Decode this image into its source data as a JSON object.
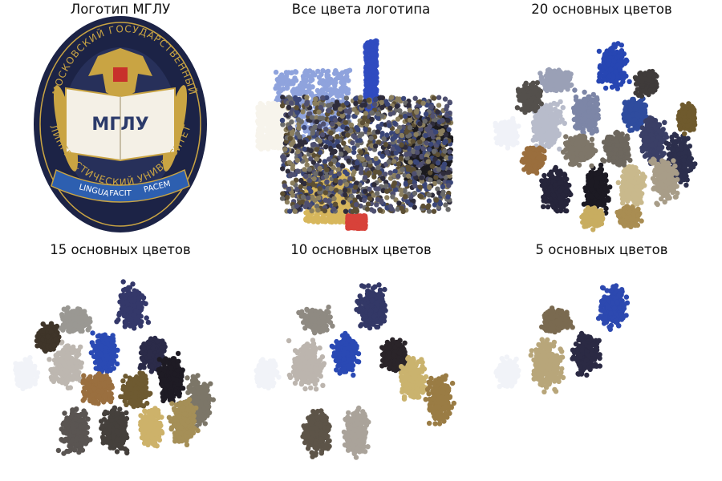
{
  "panels": [
    {
      "title": "Логотип МГЛУ",
      "kind": "logo"
    },
    {
      "title": "Все цвета логотипа",
      "kind": "scatter",
      "clusters": 0
    },
    {
      "title": "20 основных цветов",
      "kind": "scatter",
      "clusters": 20
    },
    {
      "title": "15 основных цветов",
      "kind": "scatter",
      "clusters": 15
    },
    {
      "title": "10 основных цветов",
      "kind": "scatter",
      "clusters": 10
    },
    {
      "title": "5 основных цветов",
      "kind": "scatter",
      "clusters": 5
    }
  ],
  "logo": {
    "arc_top": "МОСКОВСКИЙ ГОСУДАРСТВЕННЫЙ",
    "arc_bottom": "ЛИНГВИСТИЧЕСКИЙ УНИВЕРСИТЕТ",
    "book_text": "МГЛУ",
    "ribbon": [
      "LINGUA",
      "FACIT",
      "PACEM"
    ],
    "colors": {
      "navy": "#1c2346",
      "gold": "#c9a443",
      "ribbon": "#2d5fb0",
      "book": "#f4f0e6",
      "shield": "#c8312b"
    }
  },
  "chart_data": [
    {
      "type": "scatter",
      "title": "Все цвета логотипа",
      "xlabel": "",
      "ylabel": "",
      "grid": false,
      "axes_visible": false,
      "series": [
        {
          "region": "blue",
          "color": "#2f4bc0",
          "x": [
            0.52,
            0.57
          ],
          "y": [
            0.58,
            0.92
          ]
        },
        {
          "region": "light-blue",
          "color": "#8fa3dd",
          "x": [
            0.12,
            0.45
          ],
          "y": [
            0.45,
            0.78
          ]
        },
        {
          "region": "white",
          "color": "#f7f4ec",
          "x": [
            0.04,
            0.2
          ],
          "y": [
            0.4,
            0.62
          ]
        },
        {
          "region": "gold",
          "color": "#d7b75c",
          "x": [
            0.25,
            0.45
          ],
          "y": [
            0.05,
            0.3
          ]
        },
        {
          "region": "dark",
          "color": "#1b1a1e",
          "x": [
            0.7,
            0.9
          ],
          "y": [
            0.25,
            0.55
          ]
        },
        {
          "region": "red",
          "color": "#d8423a",
          "x": [
            0.44,
            0.52
          ],
          "y": [
            0.02,
            0.08
          ]
        }
      ]
    },
    {
      "type": "scatter",
      "title": "20 основных цветов",
      "k": 20,
      "grid": false,
      "axes_visible": false,
      "cluster_colors": [
        "#f0f2f8",
        "#b8bccb",
        "#9aa0b6",
        "#7d86a7",
        "#2746b3",
        "#2f4c9e",
        "#3a3f66",
        "#2c2f4d",
        "#26253b",
        "#1c1a23",
        "#c9b98c",
        "#a89d88",
        "#7e7669",
        "#6d675e",
        "#54504c",
        "#3f3b3a",
        "#c8ad60",
        "#a98d52",
        "#9a6e3d",
        "#6f5a2d"
      ]
    },
    {
      "type": "scatter",
      "title": "15 основных цветов",
      "k": 15,
      "grid": false,
      "axes_visible": false,
      "cluster_colors": [
        "#f1f3f8",
        "#bdb7b0",
        "#9a9893",
        "#2a4ab4",
        "#34386a",
        "#2b2b49",
        "#1e1b24",
        "#7c7668",
        "#5a5552",
        "#45403c",
        "#cdb26a",
        "#a58f57",
        "#9a6f3f",
        "#6e5a31",
        "#3f3529"
      ]
    },
    {
      "type": "scatter",
      "title": "10 основных цветов",
      "k": 10,
      "grid": false,
      "axes_visible": false,
      "cluster_colors": [
        "#f1f3f8",
        "#bcb5ae",
        "#8f8a82",
        "#2a49b4",
        "#333867",
        "#2a2429",
        "#cab36e",
        "#9a7c44",
        "#5d5448",
        "#aaa39a"
      ]
    },
    {
      "type": "scatter",
      "title": "5 основных цветов",
      "k": 5,
      "grid": false,
      "axes_visible": false,
      "cluster_colors": [
        "#f1f3f8",
        "#b8a67a",
        "#7a6a50",
        "#2b2a44",
        "#2d49b0"
      ]
    }
  ]
}
